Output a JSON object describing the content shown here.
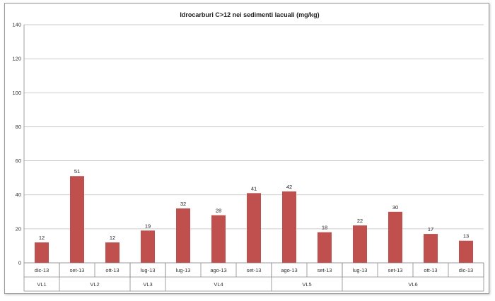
{
  "chart_data": {
    "type": "bar",
    "title": "Idrocarburi C>12 nei sedimenti lacuali (mg/kg)",
    "ylim": [
      0,
      140
    ],
    "yticks": [
      0,
      20,
      40,
      60,
      80,
      100,
      120,
      140
    ],
    "grid": true,
    "bar_color": "#c0504d",
    "categories": [
      "dic-13",
      "set-13",
      "ott-13",
      "lug-13",
      "lug-13",
      "ago-13",
      "set-13",
      "ago-13",
      "set-13",
      "lug-13",
      "set-13",
      "ott-13",
      "dic-13"
    ],
    "values": [
      12,
      51,
      12,
      19,
      32,
      28,
      41,
      42,
      18,
      22,
      30,
      17,
      13
    ],
    "groups": [
      {
        "name": "VL1",
        "count": 1
      },
      {
        "name": "VL2",
        "count": 2
      },
      {
        "name": "VL3",
        "count": 1
      },
      {
        "name": "VL4",
        "count": 3
      },
      {
        "name": "VL5",
        "count": 2
      },
      {
        "name": "VL6",
        "count": 4
      }
    ]
  }
}
